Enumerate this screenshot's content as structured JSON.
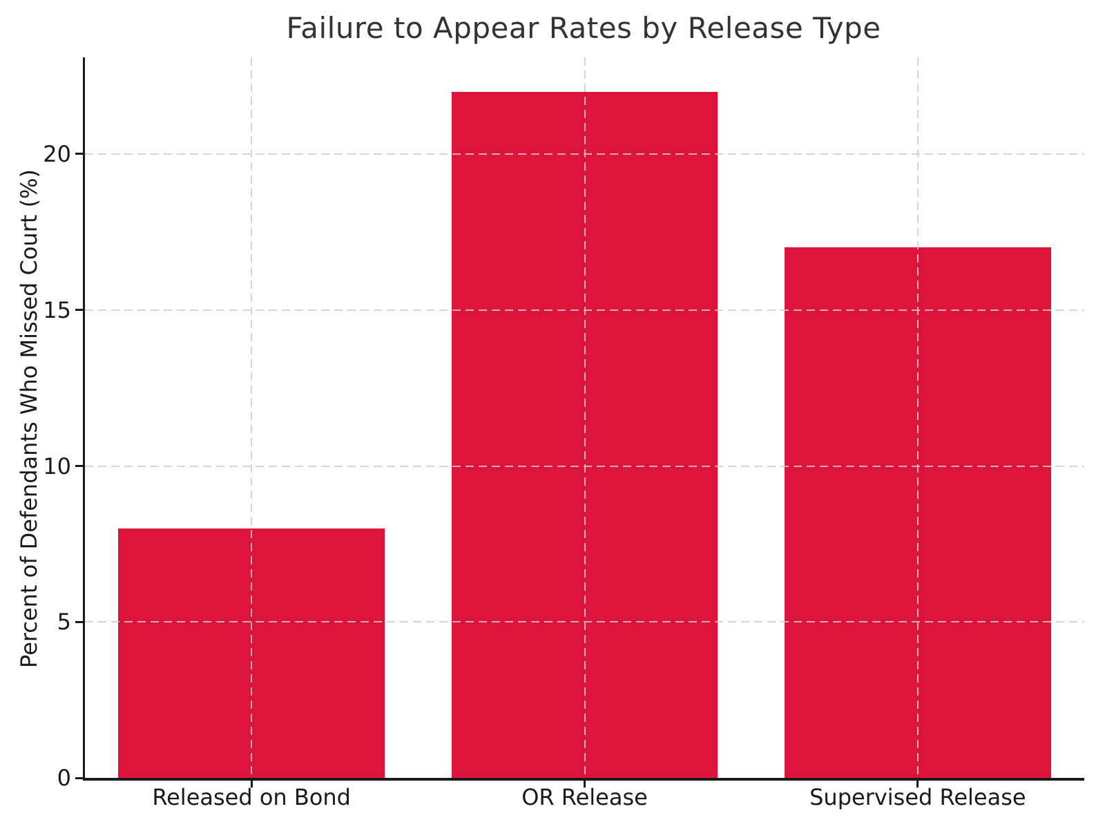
{
  "figure": {
    "title": "Failure to Appear Rates by Release Type"
  },
  "chart_data": {
    "type": "bar",
    "title": "Failure to Appear Rates by Release Type",
    "categories": [
      "Released on Bond",
      "OR Release",
      "Supervised Release"
    ],
    "values": [
      8,
      22,
      17
    ],
    "xlabel": "",
    "ylabel": "Percent of Defendants Who Missed Court (%)",
    "yticks": [
      0,
      5,
      10,
      15,
      20
    ],
    "ylim": [
      0,
      23.1
    ],
    "bar_width_fraction": 0.8,
    "grid": {
      "horizontal": true,
      "vertical": true,
      "style": "dashed",
      "drawn_over_bars": true
    },
    "legend": null
  },
  "colors": {
    "bar": "#DC143C",
    "grid": "#CCCCCC",
    "spine": "#1A1A1A",
    "title_text": "#333333",
    "tick_text": "#1A1A1A",
    "background": "#FFFFFF"
  }
}
